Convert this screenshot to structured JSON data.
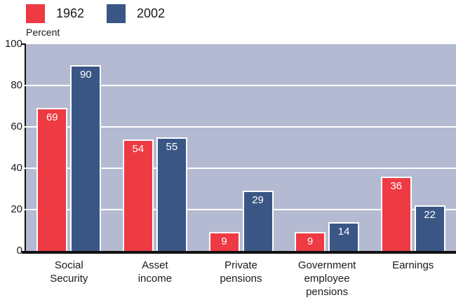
{
  "legend": {
    "items": [
      {
        "label": "1962",
        "color": "#EE3A43"
      },
      {
        "label": "2002",
        "color": "#395685"
      }
    ],
    "position": "top-left"
  },
  "chart_data": {
    "type": "bar",
    "title": "",
    "ylabel": "Percent",
    "xlabel": "",
    "ylim": [
      0,
      100
    ],
    "yticks": [
      0,
      20,
      40,
      60,
      80,
      100
    ],
    "grid": "horizontal white gridlines at 20, 40, 60, 80",
    "legend_position": "top-left",
    "categories": [
      "Social Security",
      "Asset income",
      "Private pensions",
      "Government employee pensions",
      "Earnings"
    ],
    "category_label_lines": [
      [
        "Social",
        "Security"
      ],
      [
        "Asset",
        "income"
      ],
      [
        "Private",
        "pensions"
      ],
      [
        "Government",
        "employee",
        "pensions"
      ],
      [
        "Earnings"
      ]
    ],
    "series": [
      {
        "name": "1962",
        "color": "#EE3A43",
        "values": [
          69,
          54,
          9,
          9,
          36
        ]
      },
      {
        "name": "2002",
        "color": "#395685",
        "values": [
          90,
          55,
          29,
          14,
          22
        ]
      }
    ],
    "bar_value_labels": "white, inside top of each bar",
    "plot_background": "#B4BAD1",
    "gridline_color": "#FFFFFF",
    "axis_color": "#111111",
    "bar_outline_color": "#FFFFFF",
    "bar_label_color": "#FFFFFF"
  }
}
